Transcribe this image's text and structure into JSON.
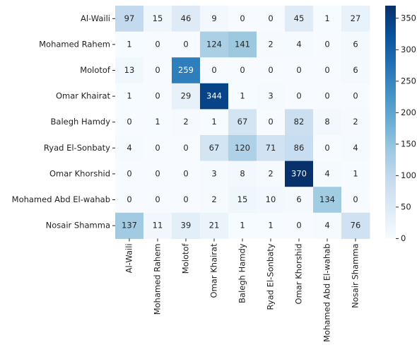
{
  "chart_data": {
    "type": "heatmap",
    "rows": [
      "Al-Waili",
      "Mohamed Rahem",
      "Molotof",
      "Omar Khairat",
      "Balegh Hamdy",
      "Ryad El-Sonbaty",
      "Omar Khorshid",
      "Mohamed Abd El-wahab",
      "Nosair Shamma"
    ],
    "columns": [
      "Al-Waili",
      "Mohamed Rahem",
      "Molotof",
      "Omar Khairat",
      "Balegh Hamdy",
      "Ryad El-Sonbaty",
      "Omar Khorshid",
      "Mohamed Abd El-wahab",
      "Nosair Shamma"
    ],
    "values": [
      [
        97,
        15,
        46,
        9,
        0,
        0,
        45,
        1,
        27
      ],
      [
        1,
        0,
        0,
        124,
        141,
        2,
        4,
        0,
        6
      ],
      [
        13,
        0,
        259,
        0,
        0,
        0,
        0,
        0,
        6
      ],
      [
        1,
        0,
        29,
        344,
        1,
        3,
        0,
        0,
        0
      ],
      [
        0,
        1,
        2,
        1,
        67,
        0,
        82,
        8,
        2
      ],
      [
        4,
        0,
        0,
        67,
        120,
        71,
        86,
        0,
        4
      ],
      [
        0,
        0,
        0,
        3,
        8,
        2,
        370,
        4,
        1
      ],
      [
        0,
        0,
        0,
        2,
        15,
        10,
        6,
        134,
        0
      ],
      [
        137,
        11,
        39,
        21,
        1,
        1,
        0,
        4,
        76
      ]
    ],
    "zlim": [
      0,
      370
    ],
    "zticks": [
      0,
      50,
      100,
      150,
      200,
      250,
      300,
      350
    ],
    "colormap": [
      "#f7fbff",
      "#deebf7",
      "#c6dbef",
      "#9ecae1",
      "#6baed6",
      "#4292c6",
      "#2171b5",
      "#08519c",
      "#08306b"
    ]
  }
}
